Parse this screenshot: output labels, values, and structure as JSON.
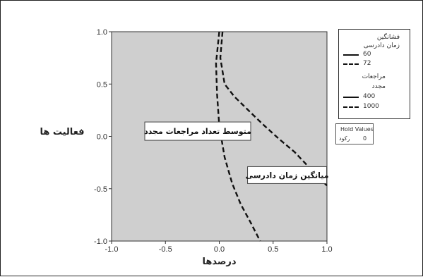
{
  "chart_data": {
    "type": "line",
    "xlabel": "درصدها",
    "ylabel": "فعالیت ها",
    "xlim": [
      -1.0,
      1.0
    ],
    "ylim": [
      -1.0,
      1.0
    ],
    "x_ticks": [
      "-1.0",
      "-0.5",
      "0.0",
      "0.5",
      "1.0"
    ],
    "y_ticks": [
      "1.0",
      "0.5",
      "0.0",
      "-0.5",
      "-1.0"
    ],
    "grid": false,
    "background_color": "#cfcfcf",
    "legend_position": "right",
    "legend": {
      "group1_title_line1": "فشانگین",
      "group1_title_line2": "زمان دادرسی",
      "group1_items": [
        "60",
        "72"
      ],
      "group2_title_line1": "مراجعات",
      "group2_title_line2": "مجدد",
      "group2_items": [
        "400",
        "1000"
      ]
    },
    "hold_values": {
      "title": "Hold Values",
      "name": "رکود",
      "value": "0"
    },
    "annotations": [
      {
        "text": "متوسط تعداد مراجعات مجدد",
        "anchor": [
          -0.2,
          0.05
        ]
      },
      {
        "text": "میانگین زمان دادرسی",
        "anchor": [
          0.63,
          -0.37
        ]
      }
    ],
    "series": [
      {
        "group": "زمان دادرسی",
        "name": "72",
        "style": "dashed",
        "points": [
          [
            0.0,
            1.0
          ],
          [
            -0.03,
            0.7
          ],
          [
            -0.02,
            0.4
          ],
          [
            0.0,
            0.1
          ],
          [
            0.05,
            -0.2
          ],
          [
            0.12,
            -0.45
          ],
          [
            0.2,
            -0.65
          ],
          [
            0.29,
            -0.82
          ],
          [
            0.38,
            -1.0
          ]
        ]
      },
      {
        "group": "مراجعات مجدد",
        "name": "1000",
        "style": "dashed",
        "points": [
          [
            0.03,
            1.0
          ],
          [
            0.01,
            0.75
          ],
          [
            0.05,
            0.5
          ],
          [
            0.14,
            0.38
          ],
          [
            0.26,
            0.26
          ],
          [
            0.4,
            0.12
          ],
          [
            0.55,
            -0.02
          ],
          [
            0.7,
            -0.15
          ],
          [
            0.82,
            -0.28
          ],
          [
            0.93,
            -0.4
          ],
          [
            1.0,
            -0.47
          ]
        ]
      }
    ]
  }
}
